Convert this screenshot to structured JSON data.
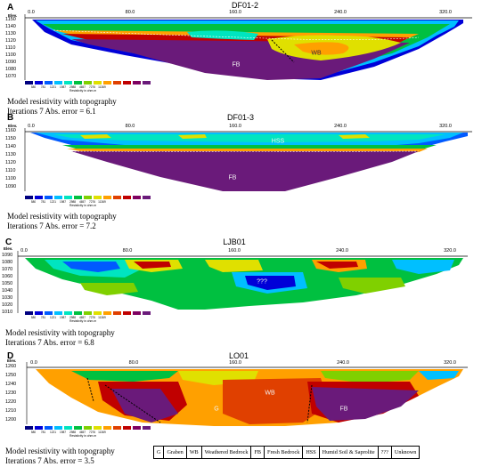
{
  "resistivity_colors": [
    "#00007f",
    "#0000d8",
    "#005aff",
    "#00bfff",
    "#00e5c0",
    "#00c040",
    "#80d000",
    "#e0e000",
    "#ffa000",
    "#e04000",
    "#c00000",
    "#7f0060",
    "#6a1a7a"
  ],
  "scale": {
    "values": [
      "580",
      "781",
      "1221",
      "1987",
      "2988",
      "4657",
      "7276",
      "11369"
    ],
    "unit": "Resistivity in ohm.m"
  },
  "panels": [
    {
      "letter": "A",
      "title": "DF01-2",
      "elev_label": "Elev.",
      "x_ticks": [
        "0.0",
        "80.0",
        "160.0",
        "240.0",
        "320.0"
      ],
      "y_ticks": [
        "1150",
        "1140",
        "1130",
        "1120",
        "1110",
        "1100",
        "1090",
        "1080",
        "1070"
      ],
      "zones": [
        "FB",
        "WB"
      ],
      "caption": [
        "Model resistivity with topography",
        "Iterations 7 Abs. error = 6.1"
      ]
    },
    {
      "letter": "B",
      "title": "DF01-3",
      "elev_label": "Elev.",
      "x_ticks": [
        "0.0",
        "80.0",
        "160.0",
        "240.0",
        "320.0"
      ],
      "y_ticks": [
        "1160",
        "1150",
        "1140",
        "1130",
        "1120",
        "1110",
        "1100",
        "1090"
      ],
      "zones": [
        "HSS",
        "FB"
      ],
      "caption": [
        "Model resistivity with topography",
        "Iterations 7 Abs. error = 7.2"
      ]
    },
    {
      "letter": "C",
      "title": "LJB01",
      "elev_label": "Elev.",
      "x_ticks": [
        "0.0",
        "80.0",
        "160.0",
        "240.0",
        "320.0"
      ],
      "y_ticks": [
        "1090",
        "1080",
        "1070",
        "1060",
        "1050",
        "1040",
        "1030",
        "1020",
        "1010"
      ],
      "zones": [
        "???"
      ],
      "caption": [
        "Model resistivity with topography",
        "Iterations 7 Abs. error = 6.8"
      ]
    },
    {
      "letter": "D",
      "title": "LO01",
      "elev_label": "Elev.",
      "x_ticks": [
        "0.0",
        "80.0",
        "160.0",
        "240.0",
        "320.0"
      ],
      "y_ticks": [
        "1260",
        "1250",
        "1240",
        "1230",
        "1220",
        "1210",
        "1200"
      ],
      "zones": [
        "WB",
        "G",
        "FB"
      ],
      "caption": [
        "Model resistivity with topography",
        "Iterations 7 Abs. error = 3.5"
      ]
    }
  ],
  "legend": [
    "G",
    "Graben",
    "WB",
    "Weathered Bedrock",
    "FB",
    "Fresh Bedrock",
    "HSS",
    "Humid Soil & Saprolite",
    "???",
    "Unknown"
  ]
}
